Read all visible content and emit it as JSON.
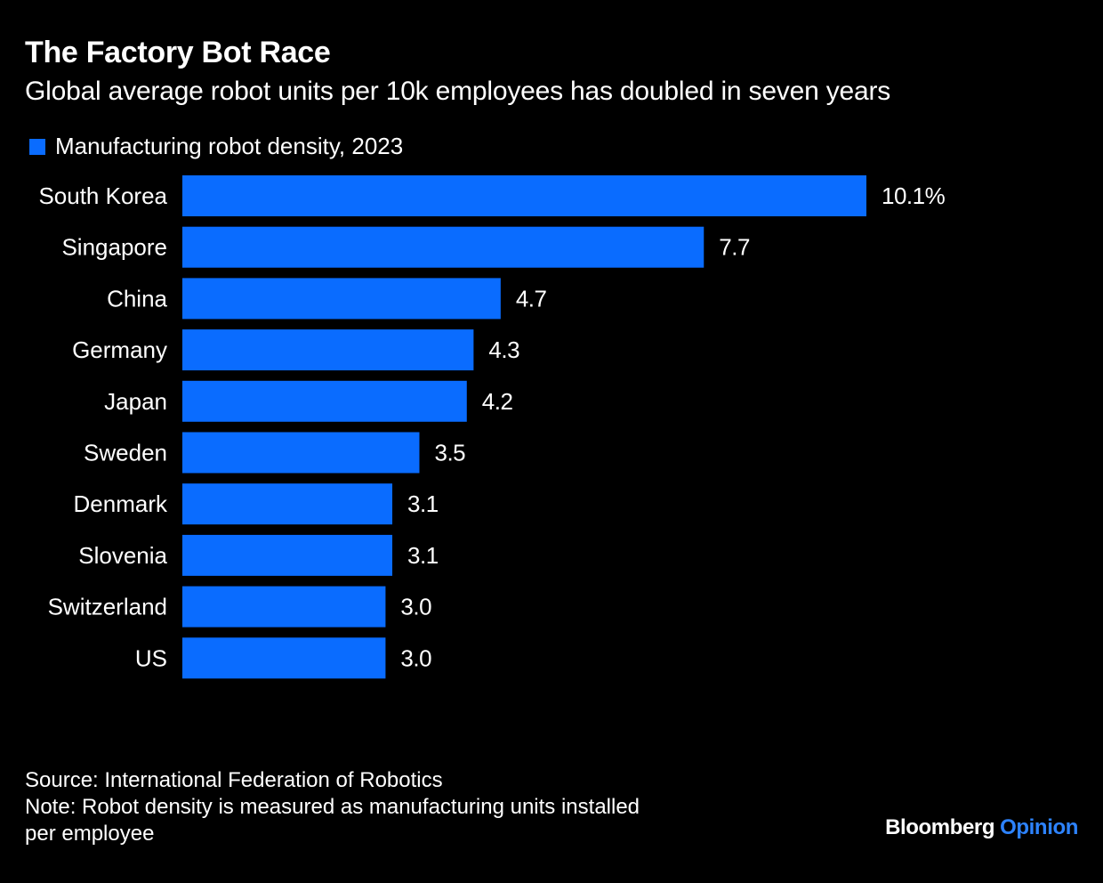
{
  "title": "The Factory Bot Race",
  "subtitle": "Global average robot units per 10k employees has doubled in seven years",
  "legend": {
    "label": "Manufacturing robot density, 2023",
    "color": "#0a6cff"
  },
  "chart_data": {
    "type": "bar",
    "orientation": "horizontal",
    "title": "The Factory Bot Race",
    "subtitle": "Global average robot units per 10k employees has doubled in seven years",
    "categories": [
      "South Korea",
      "Singapore",
      "China",
      "Germany",
      "Japan",
      "Sweden",
      "Denmark",
      "Slovenia",
      "Switzerland",
      "US"
    ],
    "values": [
      10.1,
      7.7,
      4.7,
      4.3,
      4.2,
      3.5,
      3.1,
      3.1,
      3.0,
      3.0
    ],
    "value_labels": [
      "10.1%",
      "7.7",
      "4.7",
      "4.3",
      "4.2",
      "3.5",
      "3.1",
      "3.1",
      "3.0",
      "3.0"
    ],
    "series": [
      {
        "name": "Manufacturing robot density, 2023",
        "values": [
          10.1,
          7.7,
          4.7,
          4.3,
          4.2,
          3.5,
          3.1,
          3.1,
          3.0,
          3.0
        ]
      }
    ],
    "xlabel": "",
    "ylabel": "",
    "xlim": [
      0,
      10.1
    ],
    "grid": false,
    "legend_position": "top-left"
  },
  "footer": {
    "source": "Source: International Federation of Robotics",
    "note_line1": "Note: Robot density is measured as manufacturing units installed",
    "note_line2": "per employee"
  },
  "brand": {
    "name": "Bloomberg",
    "section": "Opinion",
    "section_color": "#2d83ff"
  },
  "colors": {
    "background": "#000000",
    "bar": "#0a6cff",
    "text": "#ffffff"
  }
}
